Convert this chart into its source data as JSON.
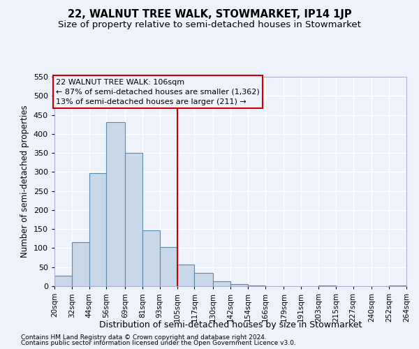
{
  "title": "22, WALNUT TREE WALK, STOWMARKET, IP14 1JP",
  "subtitle": "Size of property relative to semi-detached houses in Stowmarket",
  "xlabel": "Distribution of semi-detached houses by size in Stowmarket",
  "ylabel": "Number of semi-detached properties",
  "footnote1": "Contains HM Land Registry data © Crown copyright and database right 2024.",
  "footnote2": "Contains public sector information licensed under the Open Government Licence v3.0.",
  "annotation_title": "22 WALNUT TREE WALK: 106sqm",
  "annotation_line1": "← 87% of semi-detached houses are smaller (1,362)",
  "annotation_line2": "13% of semi-detached houses are larger (211) →",
  "property_size": 106,
  "bin_edges": [
    20,
    32,
    44,
    56,
    69,
    81,
    93,
    105,
    117,
    130,
    142,
    154,
    166,
    179,
    191,
    203,
    215,
    227,
    240,
    252,
    264
  ],
  "bar_values": [
    28,
    115,
    297,
    430,
    350,
    147,
    103,
    57,
    35,
    13,
    5,
    1,
    0,
    0,
    0,
    1,
    0,
    0,
    0,
    1
  ],
  "bar_color": "#c8d8e8",
  "bar_edge_color": "#5a8ab0",
  "vline_color": "#cc0000",
  "vline_x": 105,
  "ylim": [
    0,
    550
  ],
  "yticks": [
    0,
    50,
    100,
    150,
    200,
    250,
    300,
    350,
    400,
    450,
    500,
    550
  ],
  "background_color": "#eef2fb",
  "grid_color": "#ffffff",
  "box_color": "#cc0000",
  "title_fontsize": 10.5,
  "subtitle_fontsize": 9.5,
  "tick_label_fontsize": 7.5,
  "ylabel_fontsize": 8.5,
  "xlabel_fontsize": 9,
  "annotation_fontsize": 8.0,
  "footnote_fontsize": 6.5
}
